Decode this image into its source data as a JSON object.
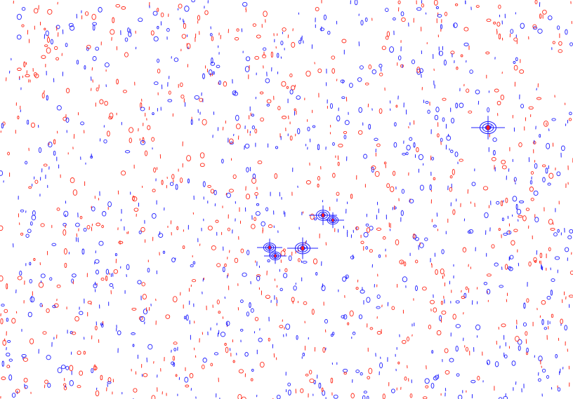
{
  "image": {
    "background_color": "#ffffff",
    "description_kind": "contour map with noise speckles",
    "colors": {
      "positive_contour": "#ff2a1a",
      "negative_contour": "#2020ff",
      "peak_core": "#ff2020"
    },
    "speckle_count": 1700,
    "peak_count": 6
  }
}
